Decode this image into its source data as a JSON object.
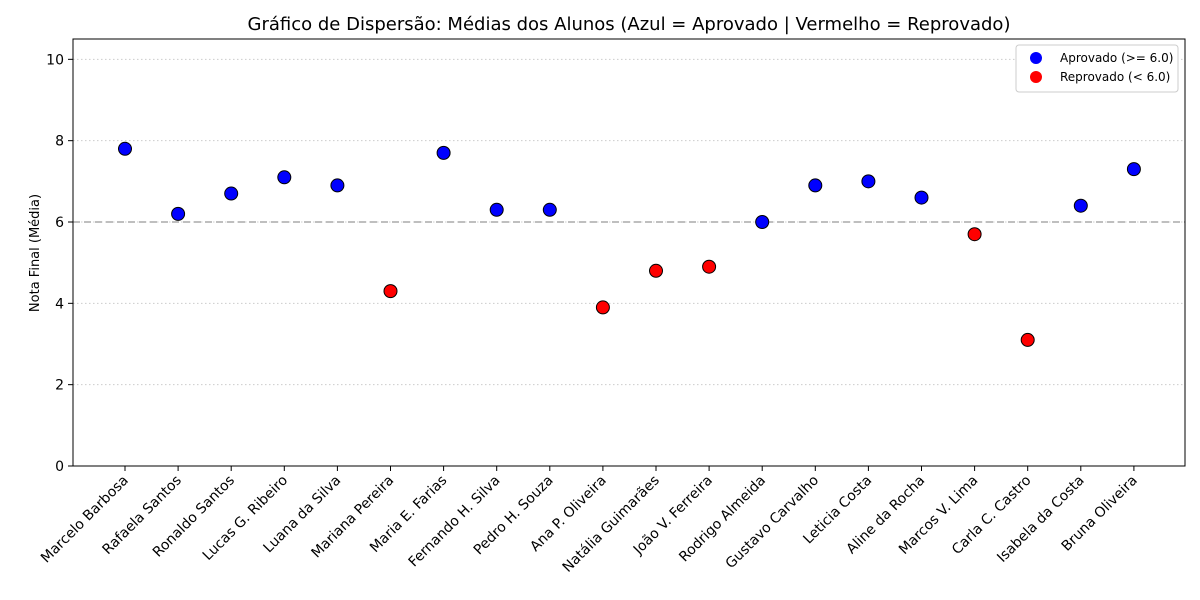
{
  "chart_data": {
    "type": "scatter",
    "title": "Gráfico de Dispersão: Médias dos Alunos (Azul = Aprovado | Vermelho = Reprovado)",
    "xlabel": "",
    "ylabel": "Nota Final (Média)",
    "ylim": [
      0,
      10.5
    ],
    "yticks": [
      "0",
      "2",
      "4",
      "6",
      "8",
      "10"
    ],
    "grid": "horizontal dotted",
    "threshold": 6.0,
    "legend_position": "top-right",
    "legend": [
      {
        "label": "Aprovado (>= 6.0)",
        "color": "#0000ff"
      },
      {
        "label": "Reprovado (< 6.0)",
        "color": "#ff0000"
      }
    ],
    "colors": {
      "approved": "#0000ff",
      "failed": "#ff0000",
      "threshold_line": "#aaaaaa"
    },
    "categories": [
      "Marcelo Barbosa",
      "Rafaela Santos",
      "Ronaldo Santos",
      "Lucas G. Ribeiro",
      "Luana da Silva",
      "Mariana Pereira",
      "Maria E. Farias",
      "Fernando H. Silva",
      "Pedro H. Souza",
      "Ana P. Oliveira",
      "Natália Guimarães",
      "João V. Ferreira",
      "Rodrigo Almeida",
      "Gustavo Carvalho",
      "Leticia Costa",
      "Aline da Rocha",
      "Marcos V. Lima",
      "Carla C. Castro",
      "Isabela da Costa",
      "Bruna Oliveira"
    ],
    "values": [
      7.8,
      6.2,
      6.7,
      7.1,
      6.9,
      4.3,
      7.7,
      6.3,
      6.3,
      3.9,
      4.8,
      4.9,
      6.0,
      6.9,
      7.0,
      6.6,
      5.7,
      3.1,
      6.4,
      7.3
    ]
  }
}
